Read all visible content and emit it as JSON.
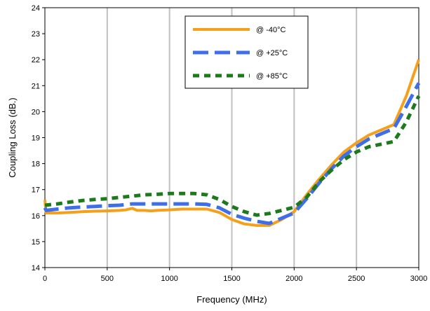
{
  "chart_data": {
    "type": "line",
    "title": "",
    "xlabel": "Frequency (MHz)",
    "ylabel": "Coupling Loss (dB.)",
    "xlim": [
      0,
      3000
    ],
    "ylim": [
      14,
      24
    ],
    "xticks": [
      "0",
      "500",
      "1000",
      "1500",
      "2000",
      "2500",
      "3000"
    ],
    "yticks": [
      "14",
      "15",
      "16",
      "17",
      "18",
      "19",
      "20",
      "21",
      "22",
      "23",
      "24"
    ],
    "grid": "vertical",
    "legend_position": "top-center",
    "series": [
      {
        "name": "@ -40°C",
        "color": "#F5A01A",
        "style": "solid",
        "points": [
          [
            0,
            16.6
          ],
          [
            10,
            16.1
          ],
          [
            100,
            16.1
          ],
          [
            200,
            16.12
          ],
          [
            300,
            16.15
          ],
          [
            400,
            16.17
          ],
          [
            500,
            16.18
          ],
          [
            600,
            16.2
          ],
          [
            650,
            16.22
          ],
          [
            700,
            16.28
          ],
          [
            740,
            16.2
          ],
          [
            800,
            16.2
          ],
          [
            850,
            16.18
          ],
          [
            900,
            16.2
          ],
          [
            1000,
            16.22
          ],
          [
            1100,
            16.25
          ],
          [
            1200,
            16.25
          ],
          [
            1300,
            16.25
          ],
          [
            1400,
            16.12
          ],
          [
            1500,
            15.85
          ],
          [
            1600,
            15.68
          ],
          [
            1700,
            15.62
          ],
          [
            1800,
            15.62
          ],
          [
            1900,
            15.85
          ],
          [
            2000,
            16.15
          ],
          [
            2100,
            16.8
          ],
          [
            2200,
            17.4
          ],
          [
            2300,
            17.95
          ],
          [
            2400,
            18.45
          ],
          [
            2500,
            18.8
          ],
          [
            2600,
            19.1
          ],
          [
            2700,
            19.3
          ],
          [
            2800,
            19.5
          ],
          [
            2900,
            20.6
          ],
          [
            3000,
            22.0
          ]
        ]
      },
      {
        "name": "@ +25°C",
        "color": "#3F6FE8",
        "style": "dashed",
        "points": [
          [
            0,
            16.3
          ],
          [
            10,
            16.2
          ],
          [
            100,
            16.25
          ],
          [
            200,
            16.3
          ],
          [
            300,
            16.33
          ],
          [
            400,
            16.35
          ],
          [
            500,
            16.38
          ],
          [
            600,
            16.4
          ],
          [
            700,
            16.45
          ],
          [
            800,
            16.45
          ],
          [
            900,
            16.45
          ],
          [
            1000,
            16.45
          ],
          [
            1100,
            16.45
          ],
          [
            1200,
            16.45
          ],
          [
            1300,
            16.43
          ],
          [
            1400,
            16.3
          ],
          [
            1500,
            16.05
          ],
          [
            1600,
            15.9
          ],
          [
            1700,
            15.78
          ],
          [
            1800,
            15.7
          ],
          [
            1900,
            15.9
          ],
          [
            2000,
            16.1
          ],
          [
            2100,
            16.65
          ],
          [
            2200,
            17.25
          ],
          [
            2300,
            17.8
          ],
          [
            2400,
            18.3
          ],
          [
            2500,
            18.65
          ],
          [
            2600,
            18.95
          ],
          [
            2700,
            19.15
          ],
          [
            2800,
            19.35
          ],
          [
            2900,
            20.2
          ],
          [
            3000,
            21.1
          ]
        ]
      },
      {
        "name": "@ +85°C",
        "color": "#1C7A1C",
        "style": "dotted",
        "points": [
          [
            0,
            16.4
          ],
          [
            100,
            16.45
          ],
          [
            200,
            16.52
          ],
          [
            300,
            16.58
          ],
          [
            400,
            16.62
          ],
          [
            500,
            16.65
          ],
          [
            600,
            16.7
          ],
          [
            700,
            16.75
          ],
          [
            800,
            16.8
          ],
          [
            900,
            16.82
          ],
          [
            1000,
            16.85
          ],
          [
            1100,
            16.85
          ],
          [
            1200,
            16.85
          ],
          [
            1300,
            16.8
          ],
          [
            1400,
            16.62
          ],
          [
            1500,
            16.35
          ],
          [
            1600,
            16.15
          ],
          [
            1700,
            16.02
          ],
          [
            1800,
            16.08
          ],
          [
            1900,
            16.2
          ],
          [
            2000,
            16.32
          ],
          [
            2100,
            16.7
          ],
          [
            2200,
            17.3
          ],
          [
            2300,
            17.75
          ],
          [
            2400,
            18.15
          ],
          [
            2500,
            18.45
          ],
          [
            2600,
            18.65
          ],
          [
            2700,
            18.75
          ],
          [
            2800,
            18.85
          ],
          [
            2900,
            19.6
          ],
          [
            3000,
            20.6
          ]
        ]
      }
    ]
  }
}
